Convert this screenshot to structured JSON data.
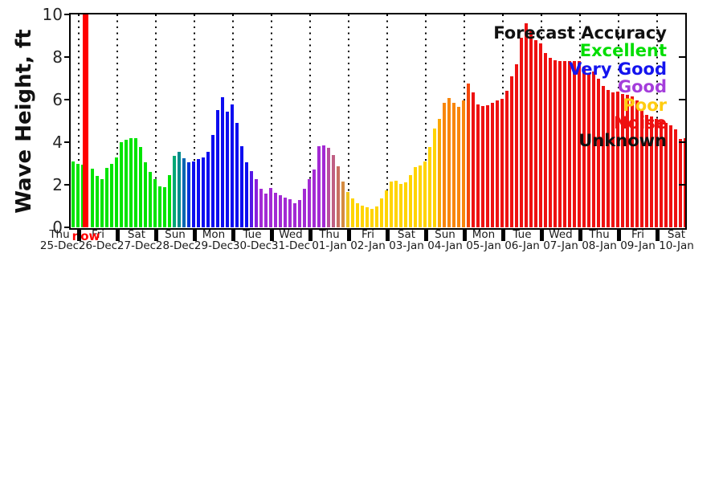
{
  "ylabel": "Wave Height, ft",
  "legend": {
    "title": "Forecast Accuracy",
    "title_color": "#111111",
    "entries": [
      {
        "label": "Excellent",
        "color": "#00dd00"
      },
      {
        "label": "Very Good",
        "color": "#1414ee"
      },
      {
        "label": "Good",
        "color": "#a43ddb"
      },
      {
        "label": "Poor",
        "color": "#ffcc11"
      },
      {
        "label": "Noise",
        "color": "#ee1111"
      },
      {
        "label": "Unknown",
        "color": "#111111"
      }
    ]
  },
  "now": {
    "label": "now",
    "color": "#ff0000",
    "slot": 3
  },
  "chart_data": {
    "type": "bar",
    "title": "",
    "xlabel": "",
    "ylabel": "Wave Height, ft",
    "ylim": [
      0,
      10
    ],
    "yticks": [
      0,
      2,
      4,
      6,
      8,
      10
    ],
    "interval_hours": 3,
    "legend_position": "upper right",
    "grid": "vertical dotted at day boundaries",
    "days": [
      {
        "weekday": "Thu",
        "date": "25-Dec"
      },
      {
        "weekday": "Fri",
        "date": "26-Dec"
      },
      {
        "weekday": "Sat",
        "date": "27-Dec"
      },
      {
        "weekday": "Sun",
        "date": "28-Dec"
      },
      {
        "weekday": "Mon",
        "date": "29-Dec"
      },
      {
        "weekday": "Tue",
        "date": "30-Dec"
      },
      {
        "weekday": "Wed",
        "date": "31-Dec"
      },
      {
        "weekday": "Thu",
        "date": "01-Jan"
      },
      {
        "weekday": "Fri",
        "date": "02-Jan"
      },
      {
        "weekday": "Sat",
        "date": "03-Jan"
      },
      {
        "weekday": "Sun",
        "date": "04-Jan"
      },
      {
        "weekday": "Mon",
        "date": "05-Jan"
      },
      {
        "weekday": "Tue",
        "date": "06-Jan"
      },
      {
        "weekday": "Wed",
        "date": "07-Jan"
      },
      {
        "weekday": "Thu",
        "date": "08-Jan"
      },
      {
        "weekday": "Fri",
        "date": "09-Jan"
      },
      {
        "weekday": "Sat",
        "date": "10-Jan"
      }
    ],
    "palette": [
      "#00e400",
      "#00a875",
      "#008c8c",
      "#0066b2",
      "#0033d9",
      "#0d0df0",
      "#5519e6",
      "#8a1fdd",
      "#a32ad4",
      "#b84f9e",
      "#c05f84",
      "#c86e62",
      "#d48b42",
      "#eec51c",
      "#ffd400",
      "#fba705",
      "#f8860d",
      "#f44708",
      "#ee1111"
    ],
    "bars": [
      [
        3.1,
        0
      ],
      [
        3.0,
        0
      ],
      [
        2.95,
        0
      ],
      [
        0,
        18
      ],
      [
        2.75,
        0
      ],
      [
        2.4,
        0
      ],
      [
        2.25,
        0
      ],
      [
        2.8,
        0
      ],
      [
        3.0,
        0
      ],
      [
        3.3,
        0
      ],
      [
        4.0,
        0
      ],
      [
        4.1,
        0
      ],
      [
        4.2,
        0
      ],
      [
        4.18,
        0
      ],
      [
        3.76,
        0
      ],
      [
        3.07,
        0
      ],
      [
        2.6,
        0
      ],
      [
        2.25,
        0
      ],
      [
        1.94,
        0
      ],
      [
        1.9,
        0
      ],
      [
        2.44,
        0
      ],
      [
        3.35,
        1
      ],
      [
        3.53,
        2
      ],
      [
        3.26,
        3
      ],
      [
        3.07,
        4
      ],
      [
        3.09,
        5
      ],
      [
        3.19,
        5
      ],
      [
        3.28,
        5
      ],
      [
        3.53,
        5
      ],
      [
        4.33,
        5
      ],
      [
        5.52,
        5
      ],
      [
        6.13,
        5
      ],
      [
        5.42,
        5
      ],
      [
        5.77,
        5
      ],
      [
        4.89,
        5
      ],
      [
        3.82,
        5
      ],
      [
        3.07,
        5
      ],
      [
        2.63,
        6
      ],
      [
        2.25,
        7
      ],
      [
        1.81,
        8
      ],
      [
        1.58,
        8
      ],
      [
        1.85,
        8
      ],
      [
        1.62,
        8
      ],
      [
        1.5,
        8
      ],
      [
        1.4,
        8
      ],
      [
        1.31,
        8
      ],
      [
        1.14,
        8
      ],
      [
        1.27,
        8
      ],
      [
        1.8,
        8
      ],
      [
        2.25,
        8
      ],
      [
        2.72,
        8
      ],
      [
        3.82,
        8
      ],
      [
        3.86,
        8
      ],
      [
        3.72,
        9
      ],
      [
        3.38,
        10
      ],
      [
        2.88,
        11
      ],
      [
        2.15,
        12
      ],
      [
        1.65,
        13
      ],
      [
        1.35,
        14
      ],
      [
        1.12,
        14
      ],
      [
        1.02,
        14
      ],
      [
        0.93,
        14
      ],
      [
        0.87,
        14
      ],
      [
        0.97,
        14
      ],
      [
        1.37,
        14
      ],
      [
        1.72,
        14
      ],
      [
        2.15,
        14
      ],
      [
        2.19,
        14
      ],
      [
        2.03,
        14
      ],
      [
        2.1,
        14
      ],
      [
        2.44,
        14
      ],
      [
        2.82,
        14
      ],
      [
        2.91,
        14
      ],
      [
        3.11,
        14
      ],
      [
        3.79,
        14
      ],
      [
        4.64,
        14
      ],
      [
        5.08,
        15
      ],
      [
        5.84,
        16
      ],
      [
        6.06,
        16
      ],
      [
        5.84,
        16
      ],
      [
        5.65,
        16
      ],
      [
        5.95,
        16
      ],
      [
        6.74,
        17
      ],
      [
        6.34,
        18
      ],
      [
        5.77,
        18
      ],
      [
        5.68,
        18
      ],
      [
        5.73,
        18
      ],
      [
        5.86,
        18
      ],
      [
        5.96,
        18
      ],
      [
        6.02,
        18
      ],
      [
        6.4,
        18
      ],
      [
        7.1,
        18
      ],
      [
        7.65,
        18
      ],
      [
        8.92,
        18
      ],
      [
        9.58,
        18
      ],
      [
        9.25,
        18
      ],
      [
        8.8,
        18
      ],
      [
        8.65,
        18
      ],
      [
        8.2,
        18
      ],
      [
        7.95,
        18
      ],
      [
        7.85,
        18
      ],
      [
        7.8,
        18
      ],
      [
        7.8,
        18
      ],
      [
        7.8,
        18
      ],
      [
        7.82,
        18
      ],
      [
        7.8,
        18
      ],
      [
        7.53,
        18
      ],
      [
        7.22,
        18
      ],
      [
        7.32,
        18
      ],
      [
        6.99,
        18
      ],
      [
        6.65,
        18
      ],
      [
        6.46,
        18
      ],
      [
        6.34,
        18
      ],
      [
        6.36,
        18
      ],
      [
        6.28,
        18
      ],
      [
        6.21,
        18
      ],
      [
        6.15,
        18
      ],
      [
        5.96,
        18
      ],
      [
        5.46,
        18
      ],
      [
        5.27,
        18
      ],
      [
        5.21,
        18
      ],
      [
        5.11,
        18
      ],
      [
        5.0,
        18
      ],
      [
        4.9,
        18
      ],
      [
        4.8,
        18
      ],
      [
        4.62,
        18
      ],
      [
        4.15,
        18
      ],
      [
        4.2,
        18
      ]
    ]
  }
}
